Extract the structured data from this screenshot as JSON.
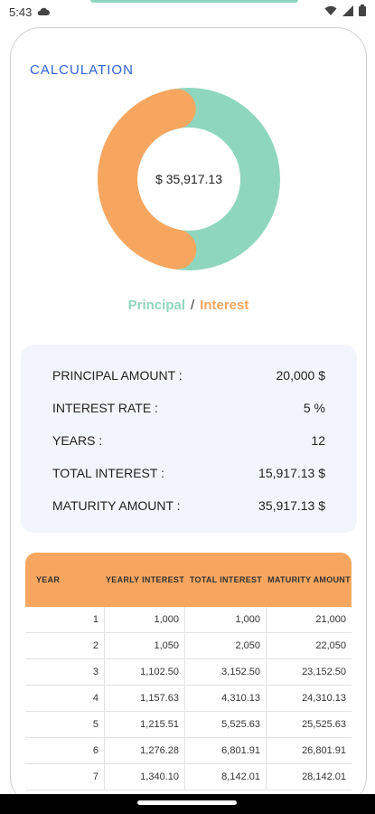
{
  "status": {
    "time": "5:43"
  },
  "calc": {
    "title": "CALCULATION",
    "total": "$ 35,917.13",
    "principal_label": "Principal",
    "separator": "/",
    "interest_label": "Interest",
    "colors": {
      "principal": "#8fd6bf",
      "interest": "#f7a660"
    },
    "principal_value": 20000,
    "interest_value": 15917.13
  },
  "summary": {
    "rows": [
      {
        "label": "PRINCIPAL AMOUNT :",
        "value": "20,000 $"
      },
      {
        "label": "INTEREST RATE :",
        "value": "5 %"
      },
      {
        "label": "YEARS :",
        "value": "12"
      },
      {
        "label": "TOTAL INTEREST :",
        "value": "15,917.13 $"
      },
      {
        "label": "MATURITY AMOUNT :",
        "value": "35,917.13 $"
      }
    ]
  },
  "table": {
    "headers": [
      "YEAR",
      "YEARLY INTEREST",
      "TOTAL INTEREST",
      "MATURITY AMOUNT"
    ],
    "rows": [
      [
        "1",
        "1,000",
        "1,000",
        "21,000"
      ],
      [
        "2",
        "1,050",
        "2,050",
        "22,050"
      ],
      [
        "3",
        "1,102.50",
        "3,152.50",
        "23,152.50"
      ],
      [
        "4",
        "1,157.63",
        "4,310.13",
        "24,310.13"
      ],
      [
        "5",
        "1,215.51",
        "5,525.63",
        "25,525.63"
      ],
      [
        "6",
        "1,276.28",
        "6,801.91",
        "26,801.91"
      ],
      [
        "7",
        "1,340.10",
        "8,142.01",
        "28,142.01"
      ]
    ]
  }
}
